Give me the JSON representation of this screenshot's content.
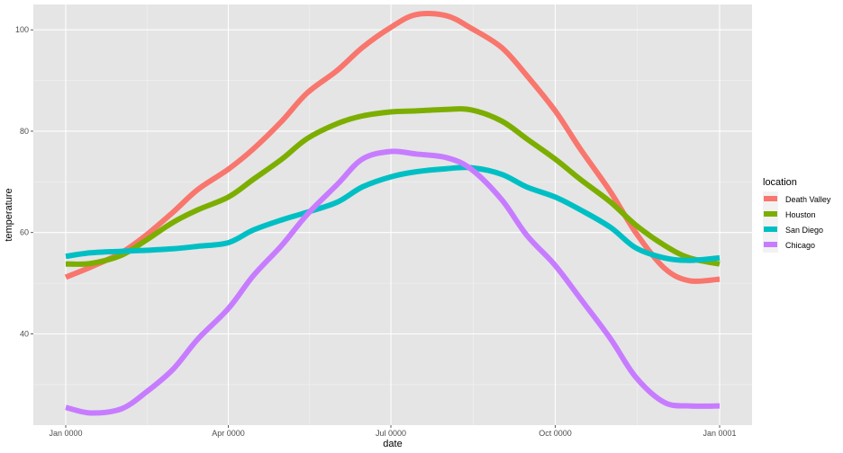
{
  "chart_data": {
    "type": "line",
    "xlabel": "date",
    "ylabel": "temperature",
    "x_ticks": [
      "Jan 0000",
      "Apr 0000",
      "Jul 0000",
      "Oct 0000",
      "Jan 0001"
    ],
    "x_tick_dates": [
      "0000-01-01",
      "0000-04-01",
      "0000-07-01",
      "0000-10-01",
      "0001-01-01"
    ],
    "x_range": [
      "0000-01-01",
      "0001-01-01"
    ],
    "y_ticks": [
      40,
      60,
      80,
      100
    ],
    "ylim": [
      22,
      105
    ],
    "grid": true,
    "panel_background": "#e5e5e5",
    "legend": {
      "title": "location",
      "position": "right"
    },
    "x": [
      "0000-01-01",
      "0000-01-15",
      "0000-02-01",
      "0000-02-15",
      "0000-03-01",
      "0000-03-15",
      "0000-04-01",
      "0000-04-15",
      "0000-05-01",
      "0000-05-15",
      "0000-06-01",
      "0000-06-15",
      "0000-07-01",
      "0000-07-15",
      "0000-08-01",
      "0000-08-15",
      "0000-09-01",
      "0000-09-15",
      "0000-10-01",
      "0000-10-15",
      "0000-11-01",
      "0000-11-15",
      "0000-12-01",
      "0000-12-15",
      "0001-01-01"
    ],
    "series": [
      {
        "name": "Death Valley",
        "color": "#f8766d",
        "values": [
          51.2,
          53.2,
          56.0,
          59.5,
          64.0,
          68.5,
          72.5,
          76.5,
          82.0,
          87.5,
          92.0,
          96.5,
          100.5,
          103.0,
          102.8,
          100.3,
          96.5,
          91.0,
          84.0,
          76.5,
          68.0,
          60.0,
          53.0,
          50.5,
          50.8
        ]
      },
      {
        "name": "Houston",
        "color": "#7cae00",
        "values": [
          53.8,
          53.9,
          55.5,
          58.5,
          62.0,
          64.5,
          67.0,
          70.5,
          74.5,
          78.5,
          81.5,
          83.0,
          83.8,
          84.0,
          84.3,
          84.2,
          82.0,
          78.5,
          74.5,
          70.5,
          66.0,
          61.5,
          57.5,
          55.0,
          53.8
        ]
      },
      {
        "name": "San Diego",
        "color": "#00bfc4",
        "values": [
          55.3,
          56.0,
          56.3,
          56.5,
          56.8,
          57.3,
          58.0,
          60.5,
          62.5,
          64.0,
          66.0,
          69.0,
          71.0,
          72.0,
          72.6,
          72.8,
          71.5,
          69.0,
          67.0,
          64.5,
          61.0,
          57.0,
          55.0,
          54.5,
          55.0
        ]
      },
      {
        "name": "Chicago",
        "color": "#c77cff",
        "values": [
          25.5,
          24.4,
          25.2,
          28.5,
          33.0,
          39.0,
          45.0,
          51.5,
          57.5,
          63.5,
          69.5,
          74.5,
          76.0,
          75.5,
          74.8,
          72.5,
          66.5,
          59.5,
          53.5,
          47.0,
          39.0,
          31.5,
          26.5,
          25.8,
          25.8
        ]
      }
    ]
  }
}
